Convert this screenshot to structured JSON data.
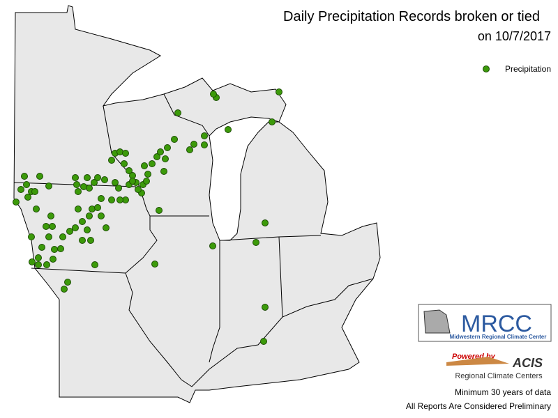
{
  "header": {
    "title": "Daily Precipitation Records broken or tied",
    "subtitle": "on 10/7/2017"
  },
  "legend": {
    "label": "Precipitation"
  },
  "logos": {
    "mrcc": "MRCC",
    "mrcc_name": "Midwestern Regional Climate Center",
    "powered_by": "Powered by",
    "acis": "ACIS",
    "acis_name": "Regional Climate Centers"
  },
  "footer": {
    "note1": "Minimum 30 years of data",
    "note2": "All Reports Are Considered Preliminary"
  }
}
